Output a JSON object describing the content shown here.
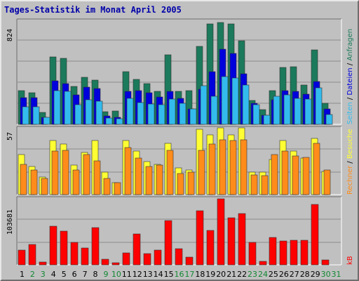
{
  "title": "Tages-Statistik im Monat April 2005",
  "colors": {
    "frame_bg": "#c0c0c0",
    "title": "#0000aa",
    "anfragen": "#1b7a5b",
    "dateien": "#0000dd",
    "seiten": "#33bbee",
    "besuche": "#ffff33",
    "rechner": "#ff8c1a",
    "kb": "#ff0000",
    "weekend_label": "#118833"
  },
  "chart_data": [
    {
      "type": "bar",
      "panel": "top",
      "ylim": [
        0,
        824
      ],
      "y_tick_label": "824",
      "categories": [
        "1",
        "2",
        "3",
        "4",
        "5",
        "6",
        "7",
        "8",
        "9",
        "10",
        "11",
        "12",
        "13",
        "14",
        "15",
        "16",
        "17",
        "18",
        "19",
        "20",
        "21",
        "22",
        "23",
        "24",
        "25",
        "26",
        "27",
        "28",
        "29",
        "30",
        "31"
      ],
      "series": [
        {
          "name": "Anfragen",
          "values": [
            270,
            250,
            95,
            535,
            525,
            300,
            375,
            350,
            100,
            105,
            415,
            355,
            325,
            260,
            550,
            260,
            270,
            620,
            795,
            810,
            795,
            660,
            190,
            115,
            265,
            450,
            455,
            310,
            590,
            165,
            0
          ]
        },
        {
          "name": "Dateien",
          "values": [
            210,
            210,
            55,
            345,
            325,
            235,
            295,
            285,
            65,
            55,
            260,
            265,
            250,
            215,
            260,
            205,
            125,
            280,
            420,
            595,
            565,
            400,
            165,
            75,
            195,
            265,
            260,
            240,
            340,
            125,
            0
          ]
        },
        {
          "name": "Seiten",
          "values": [
            140,
            140,
            55,
            265,
            260,
            155,
            195,
            185,
            50,
            45,
            205,
            170,
            160,
            155,
            200,
            165,
            120,
            305,
            225,
            380,
            370,
            310,
            155,
            70,
            220,
            235,
            205,
            200,
            290,
            80,
            0
          ]
        }
      ]
    },
    {
      "type": "bar",
      "panel": "middle",
      "ylim": [
        0,
        57
      ],
      "y_tick_label": "57",
      "categories": [
        "1",
        "2",
        "3",
        "4",
        "5",
        "6",
        "7",
        "8",
        "9",
        "10",
        "11",
        "12",
        "13",
        "14",
        "15",
        "16",
        "17",
        "18",
        "19",
        "20",
        "21",
        "22",
        "23",
        "24",
        "25",
        "26",
        "27",
        "28",
        "29",
        "30",
        "31"
      ],
      "series": [
        {
          "name": "Besuche",
          "values": [
            34,
            24,
            15,
            46,
            43,
            25,
            36,
            46,
            19,
            10,
            46,
            37,
            28,
            26,
            44,
            23,
            21,
            56,
            51,
            57,
            51,
            57,
            19,
            19,
            30,
            46,
            37,
            31,
            48,
            20,
            0
          ]
        },
        {
          "name": "Rechner",
          "values": [
            26,
            21,
            14,
            37,
            38,
            21,
            34,
            29,
            14,
            10,
            40,
            31,
            24,
            25,
            38,
            18,
            19,
            38,
            43,
            47,
            46,
            47,
            17,
            16,
            34,
            37,
            33,
            32,
            44,
            21,
            0
          ]
        }
      ]
    },
    {
      "type": "bar",
      "panel": "bottom",
      "ylim": [
        0,
        103681
      ],
      "y_tick_label": "103681",
      "categories": [
        "1",
        "2",
        "3",
        "4",
        "5",
        "6",
        "7",
        "8",
        "9",
        "10",
        "11",
        "12",
        "13",
        "14",
        "15",
        "16",
        "17",
        "18",
        "19",
        "20",
        "21",
        "22",
        "23",
        "24",
        "25",
        "26",
        "27",
        "28",
        "29",
        "30",
        "31"
      ],
      "series": [
        {
          "name": "kB",
          "values": [
            22500,
            32000,
            4500,
            60000,
            52000,
            35000,
            26000,
            57500,
            8500,
            3000,
            19000,
            48000,
            17000,
            23000,
            68500,
            25500,
            11500,
            83500,
            54000,
            103000,
            73500,
            80000,
            35000,
            6000,
            42500,
            37000,
            38000,
            38500,
            94000,
            7500,
            0
          ]
        }
      ]
    }
  ],
  "x_labels": [
    "1",
    "2",
    "3",
    "4",
    "5",
    "6",
    "7",
    "8",
    "9",
    "10",
    "11",
    "12",
    "13",
    "14",
    "15",
    "16",
    "17",
    "18",
    "19",
    "20",
    "21",
    "22",
    "23",
    "24",
    "25",
    "26",
    "27",
    "28",
    "29",
    "30",
    "31"
  ],
  "weekend_days": [
    2,
    3,
    9,
    10,
    16,
    17,
    23,
    24,
    30,
    31
  ],
  "legend": {
    "anfragen": "Anfragen",
    "dateien": "Dateien",
    "seiten": "Seiten",
    "besuche": "Besuche",
    "rechner": "Rechner",
    "kb": "kB",
    "sep": "/"
  }
}
